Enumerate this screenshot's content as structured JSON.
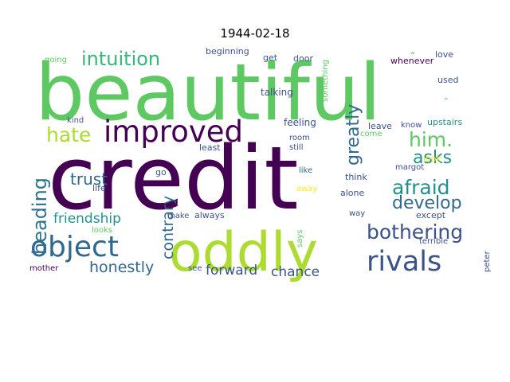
{
  "title": "1944-02-18",
  "words": [
    {
      "text": "beautiful",
      "color": "#5ec962",
      "rotated": false
    },
    {
      "text": "credit",
      "color": "#440154",
      "rotated": false
    },
    {
      "text": "oddly",
      "color": "#addc30",
      "rotated": false
    },
    {
      "text": "improved",
      "color": "#440154",
      "rotated": false
    },
    {
      "text": "object",
      "color": "#31688e",
      "rotated": false
    },
    {
      "text": "rivals",
      "color": "#3b528b",
      "rotated": false
    },
    {
      "text": "intuition",
      "color": "#35b779",
      "rotated": false
    },
    {
      "text": "hate",
      "color": "#addc30",
      "rotated": false
    },
    {
      "text": "him.",
      "color": "#5ec962",
      "rotated": false
    },
    {
      "text": "afraid",
      "color": "#21918c",
      "rotated": false
    },
    {
      "text": "asks",
      "color": "#21918c",
      "rotated": false
    },
    {
      "text": "develop",
      "color": "#31688e",
      "rotated": false
    },
    {
      "text": "bothering",
      "color": "#3b528b",
      "rotated": false
    },
    {
      "text": "heading",
      "color": "#2c728e",
      "rotated": true
    },
    {
      "text": "greatly",
      "color": "#31688e",
      "rotated": true
    },
    {
      "text": "contrary",
      "color": "#31688e",
      "rotated": true
    },
    {
      "text": "trust",
      "color": "#31688e",
      "rotated": false
    },
    {
      "text": "friendship",
      "color": "#21918c",
      "rotated": false
    },
    {
      "text": "honestly",
      "color": "#31688e",
      "rotated": false
    },
    {
      "text": "forward",
      "color": "#3b528b",
      "rotated": false
    },
    {
      "text": "chance",
      "color": "#3b528b",
      "rotated": false
    },
    {
      "text": "talking",
      "color": "#3b528b",
      "rotated": false
    },
    {
      "text": "feeling",
      "color": "#3b528b",
      "rotated": false
    },
    {
      "text": "beginning",
      "color": "#3b528b",
      "rotated": false
    },
    {
      "text": "get",
      "color": "#3b528b",
      "rotated": false
    },
    {
      "text": "door",
      "color": "#3b528b",
      "rotated": false
    },
    {
      "text": "going",
      "color": "#5ec962",
      "rotated": false
    },
    {
      "text": "love",
      "color": "#3b528b",
      "rotated": false
    },
    {
      "text": "whenever",
      "color": "#440154",
      "rotated": false
    },
    {
      "text": "used",
      "color": "#3b528b",
      "rotated": false
    },
    {
      "text": "upstairs",
      "color": "#21918c",
      "rotated": false
    },
    {
      "text": "know",
      "color": "#3b528b",
      "rotated": false
    },
    {
      "text": "leave",
      "color": "#3b528b",
      "rotated": false
    },
    {
      "text": "come",
      "color": "#5ec962",
      "rotated": false
    },
    {
      "text": "kind",
      "color": "#3b528b",
      "rotated": false
    },
    {
      "text": "least",
      "color": "#3b528b",
      "rotated": false
    },
    {
      "text": "room",
      "color": "#3b528b",
      "rotated": false
    },
    {
      "text": "still",
      "color": "#3b528b",
      "rotated": false
    },
    {
      "text": "look",
      "color": "#fde725",
      "rotated": false
    },
    {
      "text": "margot",
      "color": "#3b528b",
      "rotated": false
    },
    {
      "text": "like",
      "color": "#31688e",
      "rotated": false
    },
    {
      "text": "think",
      "color": "#3b528b",
      "rotated": false
    },
    {
      "text": "away",
      "color": "#fde725",
      "rotated": false
    },
    {
      "text": "alone",
      "color": "#3b528b",
      "rotated": false
    },
    {
      "text": "go",
      "color": "#3b528b",
      "rotated": false
    },
    {
      "text": "life",
      "color": "#3b528b",
      "rotated": false
    },
    {
      "text": "make",
      "color": "#3b528b",
      "rotated": false
    },
    {
      "text": "always",
      "color": "#3b528b",
      "rotated": false
    },
    {
      "text": "way",
      "color": "#3b528b",
      "rotated": false
    },
    {
      "text": "except",
      "color": "#3b528b",
      "rotated": false
    },
    {
      "text": "looks",
      "color": "#5ec962",
      "rotated": false
    },
    {
      "text": "terrible",
      "color": "#3b528b",
      "rotated": false
    },
    {
      "text": "mother",
      "color": "#440154",
      "rotated": false
    },
    {
      "text": "see",
      "color": "#3b528b",
      "rotated": false
    },
    {
      "text": "says",
      "color": "#5ec962",
      "rotated": true
    },
    {
      "text": "something",
      "color": "#5ec962",
      "rotated": true
    },
    {
      "text": "peter",
      "color": "#3b528b",
      "rotated": true
    },
    {
      "text": "“",
      "color": "#5ec962",
      "rotated": false
    },
    {
      "text": "”",
      "color": "#5ec962",
      "rotated": false
    }
  ]
}
